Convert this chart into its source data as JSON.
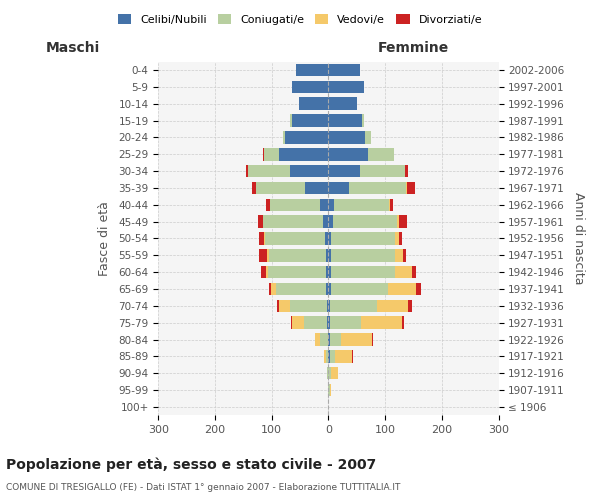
{
  "age_groups": [
    "100+",
    "95-99",
    "90-94",
    "85-89",
    "80-84",
    "75-79",
    "70-74",
    "65-69",
    "60-64",
    "55-59",
    "50-54",
    "45-49",
    "40-44",
    "35-39",
    "30-34",
    "25-29",
    "20-24",
    "15-19",
    "10-14",
    "5-9",
    "0-4"
  ],
  "birth_years": [
    "≤ 1906",
    "1907-1911",
    "1912-1916",
    "1917-1921",
    "1922-1926",
    "1927-1931",
    "1932-1936",
    "1937-1941",
    "1942-1946",
    "1947-1951",
    "1952-1956",
    "1957-1961",
    "1962-1966",
    "1967-1971",
    "1972-1976",
    "1977-1981",
    "1982-1986",
    "1987-1991",
    "1992-1996",
    "1997-2001",
    "2002-2006"
  ],
  "male_celibi": [
    0,
    0,
    0,
    0,
    0,
    2,
    3,
    4,
    4,
    5,
    6,
    10,
    15,
    42,
    68,
    88,
    76,
    65,
    52,
    65,
    58
  ],
  "male_coniugati": [
    0,
    0,
    2,
    5,
    15,
    42,
    65,
    88,
    102,
    100,
    106,
    105,
    88,
    85,
    74,
    25,
    4,
    2,
    0,
    0,
    0
  ],
  "male_vedovi": [
    0,
    0,
    1,
    3,
    8,
    20,
    20,
    10,
    5,
    3,
    2,
    1,
    0,
    0,
    0,
    0,
    0,
    0,
    0,
    0,
    0
  ],
  "male_divorziati": [
    0,
    0,
    0,
    0,
    1,
    2,
    2,
    3,
    8,
    15,
    8,
    8,
    8,
    8,
    3,
    2,
    0,
    0,
    0,
    0,
    0
  ],
  "female_nubili": [
    0,
    0,
    0,
    2,
    2,
    3,
    3,
    5,
    5,
    5,
    5,
    8,
    10,
    36,
    55,
    70,
    65,
    60,
    50,
    62,
    56
  ],
  "female_coniugate": [
    0,
    2,
    5,
    10,
    20,
    55,
    82,
    100,
    112,
    112,
    112,
    112,
    96,
    100,
    80,
    46,
    10,
    2,
    0,
    0,
    0
  ],
  "female_vedove": [
    0,
    3,
    12,
    30,
    55,
    72,
    55,
    50,
    30,
    15,
    8,
    4,
    2,
    2,
    0,
    0,
    0,
    0,
    0,
    0,
    0
  ],
  "female_divorziate": [
    0,
    0,
    0,
    2,
    2,
    3,
    8,
    8,
    8,
    5,
    5,
    15,
    5,
    15,
    5,
    0,
    0,
    0,
    0,
    0,
    0
  ],
  "colors": {
    "celibi": "#4472a8",
    "coniugati": "#b8cfa0",
    "vedovi": "#f5c96a",
    "divorziati": "#cc2222"
  },
  "title": "Popolazione per età, sesso e stato civile - 2007",
  "subtitle": "COMUNE DI TRESIGALLO (FE) - Dati ISTAT 1° gennaio 2007 - Elaborazione TUTTITALIA.IT",
  "xlabel_left": "Maschi",
  "xlabel_right": "Femmine",
  "ylabel_left": "Fasce di età",
  "ylabel_right": "Anni di nascita",
  "legend_labels": [
    "Celibi/Nubili",
    "Coniugati/e",
    "Vedovi/e",
    "Divorziati/e"
  ],
  "xlim": 300,
  "bg_color": "#ffffff",
  "grid_color": "#cccccc"
}
